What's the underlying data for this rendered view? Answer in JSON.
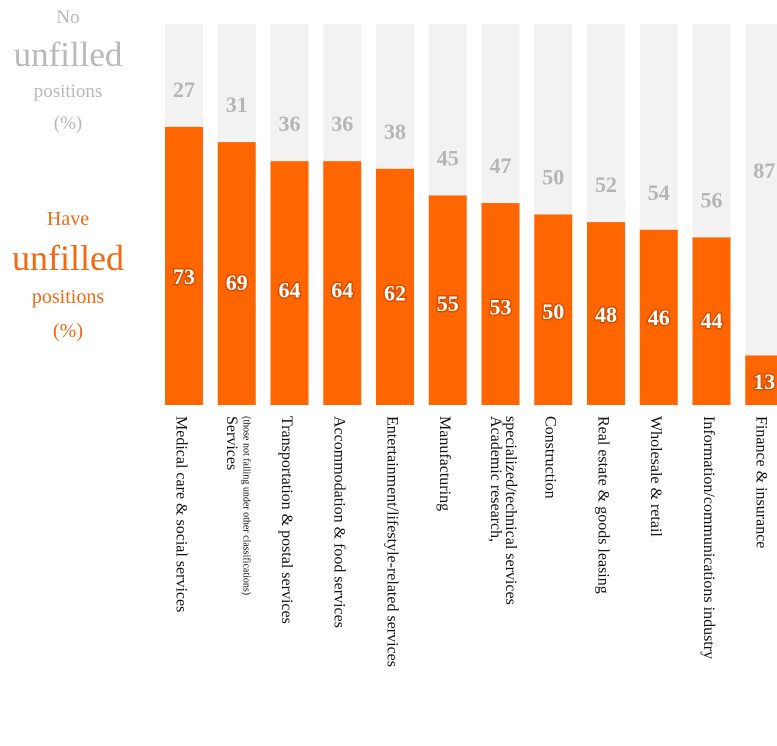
{
  "legend": {
    "no": {
      "line1": "No",
      "line2": "unfilled",
      "line3": "positions",
      "line4": "(%)"
    },
    "have": {
      "line1": "Have",
      "line2": "unfilled",
      "line3": "positions",
      "line4": "(%)"
    }
  },
  "colors": {
    "have": "#ff6600",
    "no": "#f2f2f2",
    "no_text": "#b5b5b5"
  },
  "chart_data": {
    "type": "bar",
    "stacked": true,
    "ylim": [
      0,
      100
    ],
    "categories": [
      {
        "label": "Medical care & social services",
        "sub": ""
      },
      {
        "label": "Services",
        "sub": "(those not falling under other classifications)"
      },
      {
        "label": "Transportation & postal services",
        "sub": ""
      },
      {
        "label": "Accommodation & food services",
        "sub": ""
      },
      {
        "label": "Entertainment/lifestyle-related services",
        "sub": ""
      },
      {
        "label": "Manufacturing",
        "sub": ""
      },
      {
        "label": "Academic research,",
        "sub": "specialized/technical services"
      },
      {
        "label": "Construction",
        "sub": ""
      },
      {
        "label": "Real estate & goods leasing",
        "sub": ""
      },
      {
        "label": "Wholesale & retail",
        "sub": ""
      },
      {
        "label": "Information/communications industry",
        "sub": ""
      },
      {
        "label": "Finance & insurance",
        "sub": ""
      }
    ],
    "series": [
      {
        "name": "Have unfilled positions (%)",
        "values": [
          73,
          69,
          64,
          64,
          62,
          55,
          53,
          50,
          48,
          46,
          44,
          13
        ]
      },
      {
        "name": "No unfilled positions (%)",
        "values": [
          27,
          31,
          36,
          36,
          38,
          45,
          47,
          50,
          52,
          54,
          56,
          87
        ]
      }
    ]
  }
}
